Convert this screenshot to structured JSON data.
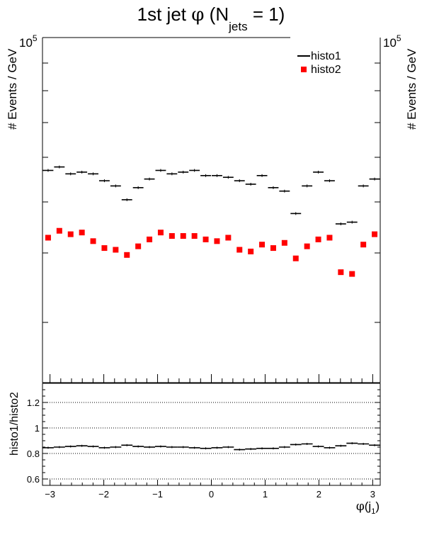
{
  "chart_data": {
    "type": "scatter",
    "title_main": "1st jet ",
    "title_phi": "φ",
    "title_open": " (N",
    "title_sub": "jets",
    "title_close": " = 1)",
    "xlabel_phi": "φ",
    "xlabel_open": "(j",
    "xlabel_sub": "1",
    "xlabel_close": ")",
    "ylabel": "# Events / GeV",
    "ylabel_right": "# Events / GeV",
    "y_exp_top": "10",
    "y_exp_sup": "5",
    "y_exp_right": "10",
    "y_exp_right_sup": "5",
    "ratio_ylabel": "histo1/histo2",
    "xlim": [
      -3.14,
      3.14
    ],
    "ylim": [
      0,
      100000
    ],
    "ratio_ylim": [
      0.55,
      1.35
    ],
    "legend": {
      "placement": "top-right",
      "entries": [
        "histo1",
        "histo2"
      ]
    },
    "series": [
      {
        "name": "histo1",
        "color": "#000000",
        "values": [
          61500,
          62500,
          60500,
          61000,
          60500,
          58500,
          57000,
          53000,
          56500,
          59000,
          61500,
          60500,
          61000,
          61500,
          60000,
          60000,
          59500,
          58500,
          57500,
          60000,
          56500,
          55500,
          49000,
          57000,
          61000,
          58500,
          46000,
          46500,
          57000,
          59000
        ]
      },
      {
        "name": "histo2",
        "color": "#ff0000",
        "values": [
          42000,
          44000,
          43000,
          43500,
          41000,
          39000,
          38500,
          37000,
          39500,
          41500,
          43500,
          42500,
          42500,
          42500,
          41500,
          41000,
          42000,
          38500,
          38000,
          40000,
          39000,
          40500,
          36000,
          39500,
          41500,
          42000,
          32000,
          31500,
          40000,
          43000
        ]
      }
    ],
    "ratio": {
      "values": [
        0.845,
        0.85,
        0.855,
        0.86,
        0.855,
        0.845,
        0.85,
        0.865,
        0.855,
        0.85,
        0.855,
        0.85,
        0.85,
        0.845,
        0.84,
        0.845,
        0.85,
        0.83,
        0.835,
        0.84,
        0.84,
        0.85,
        0.87,
        0.875,
        0.855,
        0.845,
        0.86,
        0.88,
        0.875,
        0.865
      ],
      "gridlines": [
        0.6,
        0.8,
        1.0,
        1.2
      ]
    },
    "x_ticks": [
      {
        "v": -3,
        "label": "−3"
      },
      {
        "v": -2,
        "label": "−2"
      },
      {
        "v": -1,
        "label": "−1"
      },
      {
        "v": 0,
        "label": "0"
      },
      {
        "v": 1,
        "label": "1"
      },
      {
        "v": 2,
        "label": "2"
      },
      {
        "v": 3,
        "label": "3"
      }
    ],
    "ratio_ticks": [
      {
        "v": 0.6,
        "label": "0.6"
      },
      {
        "v": 0.8,
        "label": "0.8"
      },
      {
        "v": 1.0,
        "label": "1"
      },
      {
        "v": 1.2,
        "label": "1.2"
      }
    ]
  }
}
